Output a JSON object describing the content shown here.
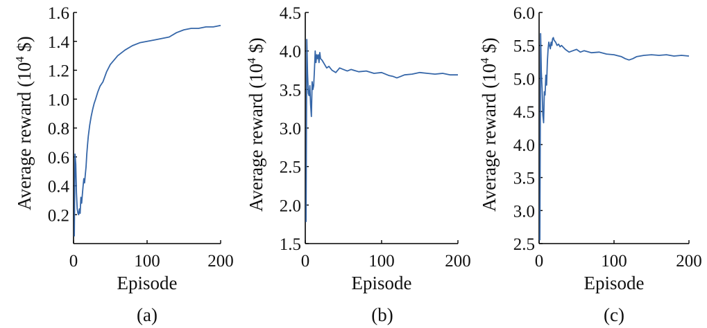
{
  "colors": {
    "series": "#3566a8",
    "axis": "#000000"
  },
  "chart_data": [
    {
      "type": "line",
      "caption": "(a)",
      "xlabel": "Episode",
      "ylabel": "Average reward (10^4 $)",
      "ylabel_main": "Average reward (10",
      "ylabel_exp": "4",
      "ylabel_unit": " $)",
      "xlim": [
        0,
        200
      ],
      "ylim": [
        0,
        1.6
      ],
      "xticks": [
        0,
        100,
        200
      ],
      "xtick_labels": [
        "0",
        "100",
        "200"
      ],
      "yticks": [
        0.2,
        0.4,
        0.6,
        0.8,
        1.0,
        1.2,
        1.4,
        1.6
      ],
      "ytick_labels": [
        "0.2",
        "0.4",
        "0.6",
        "0.8",
        "1.0",
        "1.2",
        "1.4",
        "1.6"
      ],
      "grid": false,
      "series": [
        {
          "x": [
            1,
            2,
            3,
            4,
            5,
            6,
            7,
            8,
            9,
            10,
            11,
            12,
            13,
            14,
            15,
            16,
            17,
            18,
            19,
            20,
            22,
            24,
            26,
            28,
            30,
            33,
            36,
            40,
            45,
            50,
            55,
            60,
            70,
            80,
            90,
            100,
            110,
            120,
            130,
            140,
            150,
            160,
            170,
            180,
            190,
            200
          ],
          "y": [
            0.05,
            0.62,
            0.55,
            0.35,
            0.24,
            0.21,
            0.2,
            0.24,
            0.21,
            0.32,
            0.28,
            0.34,
            0.4,
            0.45,
            0.42,
            0.48,
            0.53,
            0.62,
            0.68,
            0.74,
            0.82,
            0.88,
            0.93,
            0.97,
            1.0,
            1.05,
            1.09,
            1.12,
            1.19,
            1.24,
            1.27,
            1.3,
            1.34,
            1.37,
            1.39,
            1.4,
            1.41,
            1.42,
            1.43,
            1.46,
            1.48,
            1.49,
            1.49,
            1.5,
            1.5,
            1.51
          ]
        }
      ]
    },
    {
      "type": "line",
      "caption": "(b)",
      "xlabel": "Episode",
      "ylabel": "Average reward (10^4 $)",
      "ylabel_main": "Average reward (10",
      "ylabel_exp": "4",
      "ylabel_unit": " $)",
      "xlim": [
        0,
        200
      ],
      "ylim": [
        1.5,
        4.5
      ],
      "xticks": [
        0,
        100,
        200
      ],
      "xtick_labels": [
        "0",
        "100",
        "200"
      ],
      "yticks": [
        1.5,
        2.0,
        2.5,
        3.0,
        3.5,
        4.0,
        4.5
      ],
      "ytick_labels": [
        "1.5",
        "2.0",
        "2.5",
        "3.0",
        "3.5",
        "4.0",
        "4.5"
      ],
      "grid": false,
      "series": [
        {
          "x": [
            1,
            2,
            3,
            4,
            5,
            6,
            7,
            8,
            9,
            10,
            11,
            12,
            13,
            14,
            15,
            16,
            17,
            18,
            19,
            20,
            22,
            25,
            28,
            31,
            35,
            40,
            45,
            50,
            55,
            60,
            70,
            80,
            90,
            100,
            110,
            115,
            120,
            125,
            130,
            140,
            150,
            160,
            170,
            180,
            190,
            200
          ],
          "y": [
            1.78,
            4.15,
            3.7,
            3.45,
            3.42,
            3.55,
            3.3,
            3.15,
            3.6,
            3.5,
            3.55,
            3.75,
            4.0,
            3.85,
            3.95,
            3.9,
            3.95,
            3.85,
            3.98,
            3.9,
            3.88,
            3.83,
            3.78,
            3.8,
            3.75,
            3.72,
            3.78,
            3.76,
            3.74,
            3.76,
            3.73,
            3.74,
            3.71,
            3.72,
            3.68,
            3.67,
            3.65,
            3.67,
            3.69,
            3.7,
            3.72,
            3.71,
            3.7,
            3.71,
            3.69,
            3.69
          ]
        }
      ]
    },
    {
      "type": "line",
      "caption": "(c)",
      "xlabel": "Episode",
      "ylabel": "Average reward (10^4 $)",
      "ylabel_main": "Average reward (10",
      "ylabel_exp": "4",
      "ylabel_unit": " $)",
      "xlim": [
        0,
        200
      ],
      "ylim": [
        2.5,
        6.0
      ],
      "xticks": [
        0,
        100,
        200
      ],
      "xtick_labels": [
        "0",
        "100",
        "200"
      ],
      "yticks": [
        2.5,
        3.0,
        3.5,
        4.0,
        4.5,
        5.0,
        5.5,
        6.0
      ],
      "ytick_labels": [
        "2.5",
        "3.0",
        "3.5",
        "4.0",
        "4.5",
        "5.0",
        "5.5",
        "6.0"
      ],
      "grid": false,
      "series": [
        {
          "x": [
            1,
            2,
            3,
            4,
            5,
            6,
            7,
            8,
            9,
            10,
            11,
            12,
            13,
            14,
            15,
            16,
            17,
            18,
            19,
            20,
            22,
            24,
            26,
            28,
            30,
            35,
            40,
            45,
            50,
            55,
            60,
            70,
            80,
            90,
            100,
            110,
            115,
            120,
            125,
            130,
            140,
            150,
            160,
            170,
            180,
            190,
            200
          ],
          "y": [
            2.55,
            5.68,
            5.1,
            4.85,
            4.45,
            4.33,
            4.8,
            4.75,
            5.05,
            4.9,
            5.25,
            5.45,
            5.55,
            5.5,
            5.45,
            5.55,
            5.5,
            5.6,
            5.62,
            5.58,
            5.55,
            5.5,
            5.52,
            5.48,
            5.5,
            5.44,
            5.4,
            5.42,
            5.44,
            5.4,
            5.42,
            5.39,
            5.4,
            5.37,
            5.36,
            5.33,
            5.3,
            5.28,
            5.3,
            5.33,
            5.35,
            5.36,
            5.35,
            5.36,
            5.34,
            5.35,
            5.34
          ]
        }
      ]
    }
  ]
}
